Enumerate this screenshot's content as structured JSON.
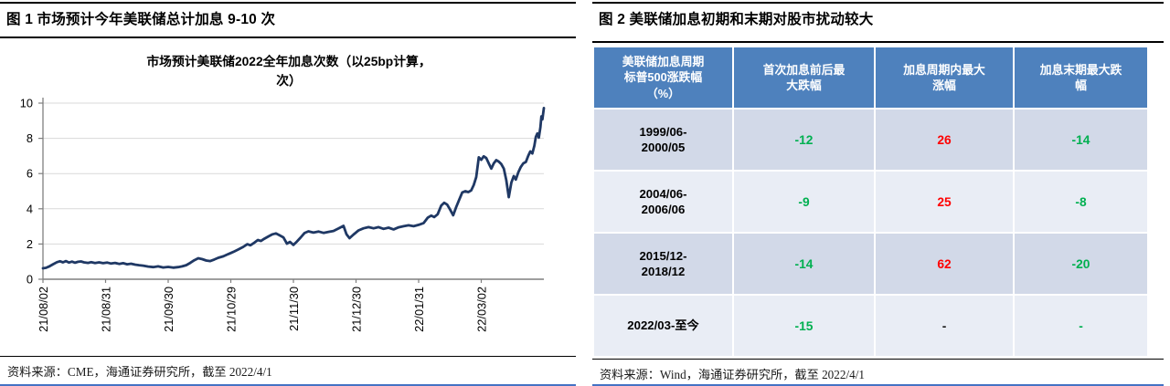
{
  "figure1": {
    "title": "图 1 市场预计今年美联储总计加息 9-10 次",
    "source": "资料来源：CME，海通证券研究所，截至 2022/4/1"
  },
  "figure2": {
    "title": "图 2 美联储加息初期和末期对股市扰动较大",
    "source": "资料来源：Wind，海通证券研究所，截至 2022/4/1"
  },
  "chart_data": [
    {
      "type": "line",
      "title": "市场预计美联储2022全年加息次数（以25bp计算，次）",
      "title_lines": [
        "市场预计美联储2022全年加息次数（以25bp计算，",
        "次）"
      ],
      "x_tick_labels": [
        "21/08/02",
        "21/08/31",
        "21/09/30",
        "21/10/29",
        "21/11/30",
        "21/12/30",
        "22/01/31",
        "22/03/02"
      ],
      "yticks": [
        0,
        2,
        4,
        6,
        8,
        10
      ],
      "ylim": [
        0,
        10
      ],
      "grid": true,
      "line_color": "#1F3864",
      "grid_color": "#D9D9D9",
      "axis_color": "#7F7F7F",
      "tick_label_color": "#000000",
      "points": [
        [
          0,
          0.62
        ],
        [
          0.6,
          0.65
        ],
        [
          1.2,
          0.72
        ],
        [
          2,
          0.85
        ],
        [
          2.8,
          0.97
        ],
        [
          3.4,
          1.02
        ],
        [
          4,
          0.96
        ],
        [
          4.6,
          1.03
        ],
        [
          5.2,
          0.95
        ],
        [
          5.8,
          1.0
        ],
        [
          6.4,
          0.94
        ],
        [
          7,
          0.99
        ],
        [
          7.6,
          1.01
        ],
        [
          8.2,
          0.96
        ],
        [
          9,
          0.93
        ],
        [
          9.6,
          0.97
        ],
        [
          10.4,
          0.92
        ],
        [
          11.2,
          0.96
        ],
        [
          12,
          0.91
        ],
        [
          12.8,
          0.95
        ],
        [
          13.6,
          0.89
        ],
        [
          14.4,
          0.93
        ],
        [
          15.2,
          0.87
        ],
        [
          16,
          0.91
        ],
        [
          16.8,
          0.85
        ],
        [
          17.6,
          0.88
        ],
        [
          18.4,
          0.83
        ],
        [
          19.2,
          0.8
        ],
        [
          20,
          0.77
        ],
        [
          21,
          0.72
        ],
        [
          22,
          0.69
        ],
        [
          23,
          0.73
        ],
        [
          24,
          0.67
        ],
        [
          25,
          0.7
        ],
        [
          26,
          0.66
        ],
        [
          27,
          0.69
        ],
        [
          27.8,
          0.73
        ],
        [
          28.6,
          0.8
        ],
        [
          29.4,
          0.93
        ],
        [
          30.2,
          1.08
        ],
        [
          31,
          1.19
        ],
        [
          31.8,
          1.14
        ],
        [
          32.6,
          1.06
        ],
        [
          33.4,
          1.03
        ],
        [
          34.2,
          1.12
        ],
        [
          35,
          1.22
        ],
        [
          36,
          1.3
        ],
        [
          37,
          1.43
        ],
        [
          38,
          1.55
        ],
        [
          39,
          1.69
        ],
        [
          40,
          1.84
        ],
        [
          40.8,
          1.99
        ],
        [
          41.4,
          1.93
        ],
        [
          42.2,
          2.08
        ],
        [
          42.9,
          2.23
        ],
        [
          43.5,
          2.17
        ],
        [
          44.2,
          2.3
        ],
        [
          45,
          2.43
        ],
        [
          45.8,
          2.55
        ],
        [
          46.5,
          2.6
        ],
        [
          47.2,
          2.5
        ],
        [
          48,
          2.38
        ],
        [
          48.7,
          2.02
        ],
        [
          49.3,
          2.12
        ],
        [
          50,
          1.95
        ],
        [
          50.7,
          2.14
        ],
        [
          51.4,
          2.36
        ],
        [
          52.2,
          2.62
        ],
        [
          53,
          2.72
        ],
        [
          54,
          2.65
        ],
        [
          55,
          2.71
        ],
        [
          56,
          2.63
        ],
        [
          57,
          2.69
        ],
        [
          58,
          2.74
        ],
        [
          59,
          2.88
        ],
        [
          60,
          3.03
        ],
        [
          60.6,
          2.55
        ],
        [
          61.2,
          2.33
        ],
        [
          62,
          2.54
        ],
        [
          63,
          2.77
        ],
        [
          64,
          2.89
        ],
        [
          65,
          2.96
        ],
        [
          66,
          2.89
        ],
        [
          67,
          2.96
        ],
        [
          68,
          2.86
        ],
        [
          69,
          2.93
        ],
        [
          70,
          2.83
        ],
        [
          71,
          2.95
        ],
        [
          72,
          3.01
        ],
        [
          73,
          3.06
        ],
        [
          74,
          3.01
        ],
        [
          75,
          3.09
        ],
        [
          76,
          3.19
        ],
        [
          76.8,
          3.49
        ],
        [
          77.5,
          3.61
        ],
        [
          78.1,
          3.53
        ],
        [
          78.8,
          3.69
        ],
        [
          79.5,
          4.18
        ],
        [
          80.1,
          4.34
        ],
        [
          80.7,
          4.24
        ],
        [
          81.3,
          3.95
        ],
        [
          81.9,
          3.63
        ],
        [
          82.5,
          4.1
        ],
        [
          83.1,
          4.52
        ],
        [
          83.7,
          4.93
        ],
        [
          84.3,
          5.0
        ],
        [
          84.9,
          4.95
        ],
        [
          85.5,
          5.04
        ],
        [
          86,
          5.35
        ],
        [
          86.5,
          5.8
        ],
        [
          87,
          6.92
        ],
        [
          87.5,
          6.78
        ],
        [
          88,
          6.98
        ],
        [
          88.5,
          6.88
        ],
        [
          89,
          6.58
        ],
        [
          89.5,
          6.28
        ],
        [
          90,
          6.58
        ],
        [
          90.5,
          6.76
        ],
        [
          91,
          6.68
        ],
        [
          91.5,
          6.54
        ],
        [
          92,
          6.28
        ],
        [
          92.5,
          5.62
        ],
        [
          93,
          4.66
        ],
        [
          93.5,
          5.48
        ],
        [
          94,
          5.86
        ],
        [
          94.4,
          5.66
        ],
        [
          94.9,
          6.08
        ],
        [
          95.4,
          6.38
        ],
        [
          95.9,
          6.58
        ],
        [
          96.4,
          6.66
        ],
        [
          96.9,
          7.02
        ],
        [
          97.3,
          7.26
        ],
        [
          97.7,
          7.14
        ],
        [
          98.1,
          7.58
        ],
        [
          98.4,
          8.08
        ],
        [
          98.7,
          8.28
        ],
        [
          99,
          8.04
        ],
        [
          99.3,
          8.62
        ],
        [
          99.5,
          9.25
        ],
        [
          99.7,
          9.08
        ],
        [
          100,
          9.72
        ]
      ]
    },
    {
      "type": "table",
      "headers": [
        "美联储加息周期\n标普500涨跌幅\n（%）",
        "首次加息前后最\n大跌幅",
        "加息周期内最大\n涨幅",
        "加息末期最大跌\n幅"
      ],
      "tone_colors": {
        "green": "#00B050",
        "red": "#FF0000",
        "dark": "#1a1a1a"
      },
      "rows": [
        {
          "period": "1999/06-\n2000/05",
          "values": [
            {
              "text": "-12",
              "tone": "green"
            },
            {
              "text": "26",
              "tone": "red"
            },
            {
              "text": "-14",
              "tone": "green"
            }
          ]
        },
        {
          "period": "2004/06-\n2006/06",
          "values": [
            {
              "text": "-9",
              "tone": "green"
            },
            {
              "text": "25",
              "tone": "red"
            },
            {
              "text": "-8",
              "tone": "green"
            }
          ]
        },
        {
          "period": "2015/12-\n2018/12",
          "values": [
            {
              "text": "-14",
              "tone": "green"
            },
            {
              "text": "62",
              "tone": "red"
            },
            {
              "text": "-20",
              "tone": "green"
            }
          ]
        },
        {
          "period": "2022/03-至今",
          "values": [
            {
              "text": "-15",
              "tone": "green"
            },
            {
              "text": "-",
              "tone": "dark"
            },
            {
              "text": "-",
              "tone": "green"
            }
          ]
        }
      ]
    }
  ]
}
